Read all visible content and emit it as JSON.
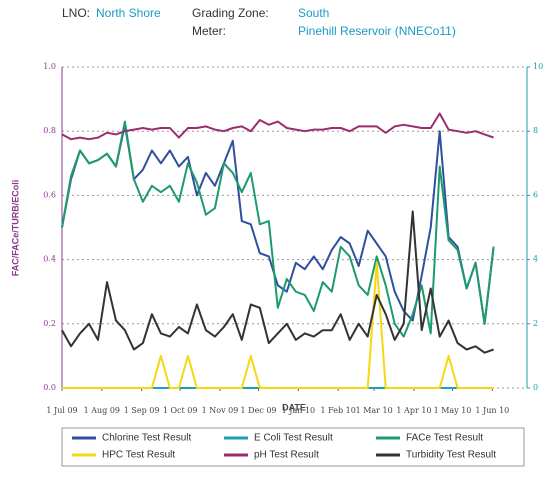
{
  "header": {
    "lno_label": "LNO:",
    "lno": "North Shore",
    "zone_label": "Grading Zone:",
    "zone": "South",
    "meter_label": "Meter:",
    "meter": "Pinehill Reservoir (NNECo11)"
  },
  "chart_data": {
    "type": "line",
    "ylabel": "FAC/FACe/TURB/EColi",
    "xlabel": "DATE",
    "x": [
      "2009-07-01",
      "2009-07-08",
      "2009-07-15",
      "2009-07-22",
      "2009-07-29",
      "2009-08-05",
      "2009-08-12",
      "2009-08-19",
      "2009-08-26",
      "2009-09-02",
      "2009-09-09",
      "2009-09-16",
      "2009-09-23",
      "2009-09-30",
      "2009-10-07",
      "2009-10-14",
      "2009-10-21",
      "2009-10-28",
      "2009-11-04",
      "2009-11-11",
      "2009-11-18",
      "2009-11-25",
      "2009-12-02",
      "2009-12-09",
      "2009-12-16",
      "2009-12-23",
      "2009-12-30",
      "2010-01-06",
      "2010-01-13",
      "2010-01-20",
      "2010-01-27",
      "2010-02-03",
      "2010-02-10",
      "2010-02-17",
      "2010-02-24",
      "2010-03-03",
      "2010-03-10",
      "2010-03-17",
      "2010-03-24",
      "2010-03-31",
      "2010-04-07",
      "2010-04-14",
      "2010-04-21",
      "2010-04-28",
      "2010-05-05",
      "2010-05-12",
      "2010-05-19",
      "2010-05-26",
      "2010-06-02"
    ],
    "xlim": [
      "2009-07-01",
      "2010-06-28"
    ],
    "xticks": [
      {
        "value": "2009-07-01",
        "label": "1 Jul 09"
      },
      {
        "value": "2009-08-01",
        "label": "1 Aug 09"
      },
      {
        "value": "2009-09-01",
        "label": "1 Sep 09"
      },
      {
        "value": "2009-10-01",
        "label": "1 Oct 09"
      },
      {
        "value": "2009-11-01",
        "label": "1 Nov 09"
      },
      {
        "value": "2009-12-01",
        "label": "1 Dec 09"
      },
      {
        "value": "2010-01-01",
        "label": "1 Jan 10"
      },
      {
        "value": "2010-02-01",
        "label": "1 Feb 10"
      },
      {
        "value": "2010-03-01",
        "label": "1 Mar 10"
      },
      {
        "value": "2010-04-01",
        "label": "1 Apr 10"
      },
      {
        "value": "2010-05-01",
        "label": "1 May 10"
      },
      {
        "value": "2010-06-01",
        "label": "1 Jun 10"
      }
    ],
    "ylim": [
      0,
      1
    ],
    "yticks": [
      {
        "value": 0,
        "label": "0.0"
      },
      0.2,
      0.4,
      0.6,
      0.8,
      {
        "value": 1,
        "label": "1.0"
      }
    ],
    "y2lim": [
      0,
      10
    ],
    "y2ticks": [
      0,
      2,
      4,
      6,
      8,
      10
    ],
    "grid": true,
    "legend": "bottom",
    "series": [
      {
        "name": "Chlorine Test Result",
        "color": "#2f4f9f",
        "values": [
          0.5,
          0.65,
          0.74,
          0.7,
          0.71,
          0.73,
          0.69,
          0.82,
          0.65,
          0.68,
          0.74,
          0.7,
          0.74,
          0.69,
          0.72,
          0.6,
          0.67,
          0.63,
          0.7,
          0.77,
          0.52,
          0.51,
          0.42,
          0.41,
          0.32,
          0.3,
          0.39,
          0.37,
          0.41,
          0.37,
          0.43,
          0.47,
          0.45,
          0.38,
          0.49,
          0.45,
          0.41,
          0.3,
          0.24,
          0.21,
          0.35,
          0.5,
          0.8,
          0.47,
          0.44,
          0.31,
          0.39,
          0.2,
          0.44
        ]
      },
      {
        "name": "E Coli Test Result",
        "color": "#1ba0b5",
        "values": [
          0,
          0,
          0,
          0,
          0,
          0,
          0,
          0,
          0,
          0,
          0,
          0,
          0,
          0,
          0,
          0,
          0,
          0,
          0,
          0,
          0,
          0,
          0,
          0,
          0,
          0,
          0,
          0,
          0,
          0,
          0,
          0,
          0,
          0,
          0,
          0,
          0,
          0,
          0,
          0,
          0,
          0,
          0,
          0,
          0,
          0,
          0,
          0,
          0
        ]
      },
      {
        "name": "FACe Test Result",
        "color": "#1e9a6e",
        "values": [
          0.5,
          0.66,
          0.74,
          0.7,
          0.71,
          0.73,
          0.69,
          0.83,
          0.65,
          0.58,
          0.63,
          0.61,
          0.63,
          0.58,
          0.7,
          0.64,
          0.54,
          0.56,
          0.7,
          0.67,
          0.61,
          0.67,
          0.51,
          0.52,
          0.25,
          0.34,
          0.3,
          0.29,
          0.24,
          0.33,
          0.3,
          0.44,
          0.41,
          0.32,
          0.29,
          0.41,
          0.32,
          0.2,
          0.16,
          0.23,
          0.32,
          0.17,
          0.69,
          0.46,
          0.43,
          0.31,
          0.39,
          0.2,
          0.44
        ]
      },
      {
        "name": "HPC Test Result",
        "color": "#f3d812",
        "values": [
          0,
          0,
          0,
          0,
          0,
          0,
          0,
          0,
          0,
          0,
          0,
          0.1,
          0,
          0,
          0.1,
          0,
          0,
          0,
          0,
          0,
          0,
          0.1,
          0,
          0,
          0,
          0,
          0,
          0,
          0,
          0,
          0,
          0,
          0,
          0,
          0,
          0.39,
          0,
          0,
          0,
          0,
          0,
          0,
          0,
          0.1,
          0,
          0,
          0,
          0,
          0
        ]
      },
      {
        "name": "pH Test Result",
        "color": "#9b2d6e",
        "axis": "y2",
        "values": [
          7.9,
          7.75,
          7.8,
          7.75,
          7.8,
          7.95,
          7.9,
          8.0,
          8.05,
          8.1,
          8.05,
          8.1,
          8.1,
          7.8,
          8.1,
          8.1,
          8.15,
          8.05,
          8.0,
          8.1,
          8.15,
          8.0,
          8.35,
          8.2,
          8.3,
          8.1,
          8.05,
          8.0,
          8.05,
          8.05,
          8.1,
          8.1,
          8.0,
          8.15,
          8.15,
          8.15,
          7.95,
          8.15,
          8.2,
          8.15,
          8.1,
          8.1,
          8.55,
          8.05,
          8.0,
          7.95,
          8.0,
          7.9,
          7.8
        ]
      },
      {
        "name": "Turbidity Test Result",
        "color": "#333333",
        "values": [
          0.18,
          0.13,
          0.17,
          0.2,
          0.15,
          0.33,
          0.21,
          0.18,
          0.12,
          0.14,
          0.23,
          0.17,
          0.16,
          0.19,
          0.17,
          0.26,
          0.18,
          0.16,
          0.19,
          0.23,
          0.15,
          0.26,
          0.25,
          0.14,
          0.17,
          0.2,
          0.15,
          0.17,
          0.16,
          0.18,
          0.18,
          0.23,
          0.15,
          0.2,
          0.16,
          0.29,
          0.23,
          0.15,
          0.2,
          0.55,
          0.18,
          0.31,
          0.16,
          0.21,
          0.14,
          0.12,
          0.13,
          0.11,
          0.12
        ]
      }
    ]
  }
}
